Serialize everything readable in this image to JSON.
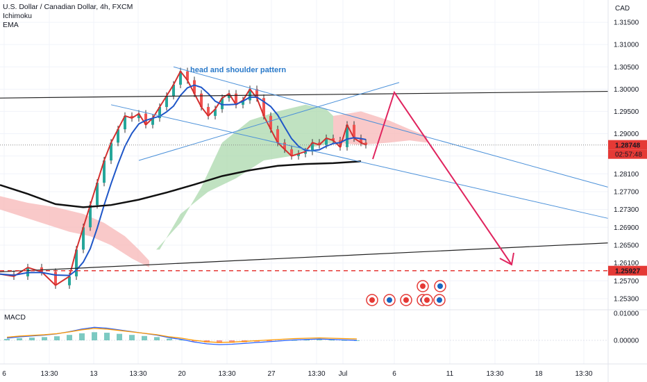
{
  "legend": {
    "symbol": "U.S. Dollar / Canadian Dollar, 4h, FXCM",
    "indicator1": "Ichimoku",
    "indicator2": "EMA"
  },
  "macd_label": "MACD",
  "currency_label": "CAD",
  "annotation": "head and shoulder pattern",
  "colors": {
    "price_line": "#d32f2f",
    "ichimoku_base": "#1e56c8",
    "ema": "#111111",
    "cloud_bull": "#a5d6a7",
    "cloud_bear": "#f8bbbb",
    "channel": "#4a90d9",
    "projection": "#e0245e",
    "support_dashed": "#e53935",
    "macd_line": "#2962ff",
    "signal_line": "#ff9800"
  },
  "chart_data": {
    "type": "line",
    "title": "U.S. Dollar / Canadian Dollar, 4h, FXCM",
    "y_axis": {
      "unit": "CAD",
      "range": [
        1.2505,
        1.32
      ],
      "ticks": [
        "1.31500",
        "1.31000",
        "1.30500",
        "1.30000",
        "1.29500",
        "1.29000",
        "1.28500",
        "1.28100",
        "1.27700",
        "1.27300",
        "1.26900",
        "1.26500",
        "1.26100",
        "1.25700",
        "1.25300"
      ]
    },
    "x_axis": {
      "ticks": [
        "6",
        "13:30",
        "13",
        "13:30",
        "20",
        "13:30",
        "27",
        "13:30",
        "Jul",
        "6",
        "11",
        "13:30",
        "18",
        "13:30"
      ]
    },
    "price_labels": {
      "current": "1.28748",
      "countdown": "02:57:48",
      "support": "1.25927"
    },
    "support_level": 1.25927,
    "series": [
      {
        "name": "",
        "x": [
          0,
          20,
          40,
          60,
          80,
          100,
          110,
          120,
          130,
          140,
          150,
          160,
          170,
          180,
          190,
          200,
          210,
          220,
          230,
          240,
          250,
          260,
          270,
          280,
          290,
          300,
          310,
          320,
          330,
          340,
          350,
          360,
          370,
          380,
          390,
          400,
          410,
          420,
          430,
          440,
          450,
          460,
          470,
          480,
          490,
          500,
          510,
          520,
          527
        ],
        "values": [
          1.2585,
          1.258,
          1.26,
          1.259,
          1.256,
          1.258,
          1.264,
          1.269,
          1.274,
          1.279,
          1.284,
          1.288,
          1.291,
          1.294,
          1.2935,
          1.2945,
          1.292,
          1.2935,
          1.296,
          1.2985,
          1.301,
          1.304,
          1.302,
          1.299,
          1.296,
          1.294,
          1.2955,
          1.298,
          1.299,
          1.2965,
          1.2975,
          1.3,
          1.298,
          1.294,
          1.291,
          1.288,
          1.2865,
          1.285,
          1.2855,
          1.286,
          1.288,
          1.2875,
          1.289,
          1.2885,
          1.287,
          1.292,
          1.289,
          1.288,
          1.2875
        ]
      }
    ],
    "ema_series": {
      "x": [
        0,
        40,
        80,
        120,
        160,
        200,
        240,
        280,
        320,
        360,
        400,
        440,
        480,
        520
      ],
      "values": [
        1.2785,
        1.2765,
        1.2742,
        1.2735,
        1.274,
        1.2752,
        1.2768,
        1.2786,
        1.2805,
        1.2818,
        1.2828,
        1.2832,
        1.2834,
        1.2838
      ]
    },
    "macd": {
      "ticks": [
        "0.01000",
        "0.00000"
      ],
      "histogram": [
        0.0005,
        0.0008,
        0.001,
        0.0012,
        0.0015,
        0.002,
        0.0026,
        0.003,
        0.0028,
        0.0024,
        0.002,
        0.0016,
        0.0012,
        0.0006,
        0.0002,
        -0.0004,
        -0.0008,
        -0.001,
        -0.0009,
        -0.0007,
        -0.0005,
        -0.0003,
        -0.0001,
        0.0001,
        0.0002,
        0.0003,
        0.0002,
        0.0001,
        0.0
      ]
    }
  }
}
